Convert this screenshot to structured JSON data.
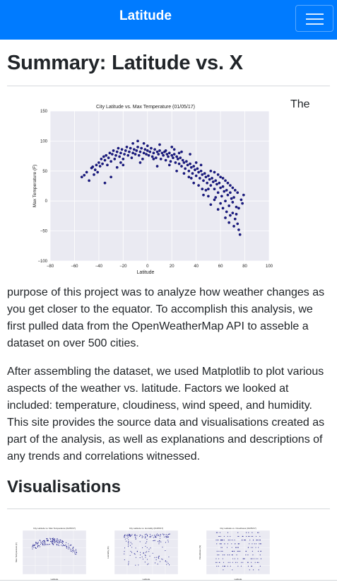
{
  "navbar": {
    "brand": "Latitude",
    "menu_icon": "hamburger-icon"
  },
  "page_title": "Summary: Latitude vs. X",
  "paragraphs": [
    "The purpose of this project was to analyze how weather changes as you get closer to the equator. To accomplish this analysis, we first pulled data from the OpenWeatherMap API to asseble a dataset on over 500 cities.",
    "After assembling the dataset, we used Matplotlib to plot various aspects of the weather vs. latitude. Factors we looked at included: temperature, cloudiness, wind speed, and humidity. This site provides the source data and visualisations created as part of the analysis, as well as explanations and descriptions of any trends and correlations witnessed."
  ],
  "visualisations_heading": "Visualisations",
  "colors": {
    "navbar": "#007bff",
    "plot_bg": "#eaeaf2",
    "point": "#1a1a8c"
  },
  "chart_data": [
    {
      "type": "scatter",
      "title": "City Latitude vs. Max Temperature (01/05/17)",
      "xlabel": "Latitude",
      "ylabel": "Max Temperature (F)",
      "xlim": [
        -80,
        100
      ],
      "ylim": [
        -100,
        150
      ],
      "xticks": [
        -80,
        -60,
        -40,
        -20,
        0,
        20,
        40,
        60,
        80,
        100
      ],
      "yticks": [
        -100,
        -50,
        0,
        50,
        100,
        150
      ],
      "grid": true,
      "points": [
        [
          -54,
          40
        ],
        [
          -52,
          43
        ],
        [
          -50,
          48
        ],
        [
          -46,
          55
        ],
        [
          -45,
          57
        ],
        [
          -44,
          44
        ],
        [
          -43,
          52
        ],
        [
          -42,
          60
        ],
        [
          -40,
          64
        ],
        [
          -39,
          58
        ],
        [
          -38,
          70
        ],
        [
          -37,
          62
        ],
        [
          -36,
          74
        ],
        [
          -35,
          68
        ],
        [
          -34,
          76
        ],
        [
          -33,
          60
        ],
        [
          -32,
          72
        ],
        [
          -31,
          80
        ],
        [
          -30,
          66
        ],
        [
          -29,
          78
        ],
        [
          -28,
          84
        ],
        [
          -27,
          70
        ],
        [
          -26,
          76
        ],
        [
          -25,
          82
        ],
        [
          -24,
          88
        ],
        [
          -23,
          74
        ],
        [
          -22,
          80
        ],
        [
          -21,
          86
        ],
        [
          -20,
          70
        ],
        [
          -19,
          78
        ],
        [
          -18,
          84
        ],
        [
          -17,
          90
        ],
        [
          -16,
          76
        ],
        [
          -15,
          82
        ],
        [
          -14,
          88
        ],
        [
          -13,
          72
        ],
        [
          -12,
          80
        ],
        [
          -11,
          86
        ],
        [
          -10,
          78
        ],
        [
          -9,
          84
        ],
        [
          -8,
          90
        ],
        [
          -7,
          76
        ],
        [
          -6,
          82
        ],
        [
          -5,
          88
        ],
        [
          -4,
          70
        ],
        [
          -3,
          80
        ],
        [
          -2,
          86
        ],
        [
          -1,
          78
        ],
        [
          0,
          84
        ],
        [
          1,
          76
        ],
        [
          2,
          82
        ],
        [
          3,
          88
        ],
        [
          4,
          74
        ],
        [
          5,
          80
        ],
        [
          6,
          86
        ],
        [
          7,
          72
        ],
        [
          8,
          82
        ],
        [
          9,
          78
        ],
        [
          10,
          84
        ],
        [
          11,
          70
        ],
        [
          12,
          80
        ],
        [
          13,
          76
        ],
        [
          14,
          82
        ],
        [
          15,
          68
        ],
        [
          16,
          78
        ],
        [
          17,
          74
        ],
        [
          18,
          80
        ],
        [
          19,
          66
        ],
        [
          20,
          76
        ],
        [
          21,
          72
        ],
        [
          22,
          78
        ],
        [
          23,
          64
        ],
        [
          24,
          74
        ],
        [
          25,
          70
        ],
        [
          26,
          62
        ],
        [
          27,
          72
        ],
        [
          28,
          58
        ],
        [
          29,
          68
        ],
        [
          30,
          64
        ],
        [
          31,
          54
        ],
        [
          32,
          66
        ],
        [
          33,
          60
        ],
        [
          34,
          50
        ],
        [
          35,
          62
        ],
        [
          36,
          56
        ],
        [
          37,
          46
        ],
        [
          38,
          58
        ],
        [
          39,
          52
        ],
        [
          40,
          42
        ],
        [
          41,
          54
        ],
        [
          42,
          48
        ],
        [
          43,
          38
        ],
        [
          44,
          50
        ],
        [
          45,
          44
        ],
        [
          46,
          34
        ],
        [
          47,
          46
        ],
        [
          48,
          40
        ],
        [
          49,
          30
        ],
        [
          50,
          42
        ],
        [
          51,
          36
        ],
        [
          52,
          26
        ],
        [
          53,
          38
        ],
        [
          54,
          32
        ],
        [
          55,
          20
        ],
        [
          56,
          34
        ],
        [
          57,
          28
        ],
        [
          58,
          14
        ],
        [
          59,
          30
        ],
        [
          60,
          22
        ],
        [
          61,
          8
        ],
        [
          62,
          24
        ],
        [
          63,
          16
        ],
        [
          64,
          0
        ],
        [
          65,
          18
        ],
        [
          66,
          10
        ],
        [
          67,
          -8
        ],
        [
          68,
          14
        ],
        [
          69,
          4
        ],
        [
          70,
          -20
        ],
        [
          71,
          6
        ],
        [
          72,
          -30
        ],
        [
          73,
          -10
        ],
        [
          74,
          -38
        ],
        [
          75,
          -48
        ],
        [
          76,
          -56
        ],
        [
          77,
          2
        ],
        [
          78,
          -4
        ],
        [
          79,
          10
        ],
        [
          -48,
          34
        ],
        [
          -41,
          48
        ],
        [
          -30,
          40
        ],
        [
          -25,
          56
        ],
        [
          -20,
          60
        ],
        [
          -12,
          96
        ],
        [
          -8,
          100
        ],
        [
          -3,
          96
        ],
        [
          0,
          92
        ],
        [
          5,
          70
        ],
        [
          10,
          94
        ],
        [
          15,
          84
        ],
        [
          20,
          90
        ],
        [
          26,
          80
        ],
        [
          30,
          46
        ],
        [
          36,
          38
        ],
        [
          40,
          64
        ],
        [
          44,
          60
        ],
        [
          50,
          20
        ],
        [
          52,
          50
        ],
        [
          55,
          48
        ],
        [
          58,
          44
        ],
        [
          60,
          40
        ],
        [
          62,
          38
        ],
        [
          64,
          34
        ],
        [
          66,
          30
        ],
        [
          68,
          26
        ],
        [
          70,
          22
        ],
        [
          72,
          18
        ],
        [
          74,
          14
        ],
        [
          45,
          20
        ],
        [
          50,
          8
        ],
        [
          55,
          2
        ],
        [
          60,
          -4
        ],
        [
          62,
          -12
        ],
        [
          65,
          -18
        ],
        [
          68,
          -24
        ],
        [
          70,
          -2
        ],
        [
          73,
          -22
        ],
        [
          75,
          -12
        ],
        [
          -35,
          30
        ],
        [
          -22,
          64
        ],
        [
          -6,
          64
        ],
        [
          8,
          58
        ],
        [
          18,
          60
        ],
        [
          24,
          50
        ],
        [
          34,
          40
        ],
        [
          42,
          26
        ],
        [
          48,
          18
        ],
        [
          56,
          6
        ],
        [
          38,
          30
        ],
        [
          46,
          10
        ],
        [
          52,
          -6
        ],
        [
          58,
          -14
        ],
        [
          64,
          -28
        ],
        [
          67,
          -36
        ],
        [
          71,
          -42
        ],
        [
          35,
          78
        ],
        [
          28,
          82
        ],
        [
          22,
          86
        ]
      ]
    }
  ],
  "thumbnails": [
    {
      "title": "City Latitude vs. Max Temperature (01/05/17)",
      "xlabel": "Latitude",
      "ylabel": "Max Temperature (F)",
      "kind": "temp"
    },
    {
      "title": "City Latitude vs. Humidity (01/05/17)",
      "xlabel": "Latitude",
      "ylabel": "Humidity (%)",
      "kind": "humidity"
    },
    {
      "title": "City Latitude vs. Cloudiness (01/05/17)",
      "xlabel": "Latitude",
      "ylabel": "Cloudiness (%)",
      "kind": "cloud"
    }
  ]
}
